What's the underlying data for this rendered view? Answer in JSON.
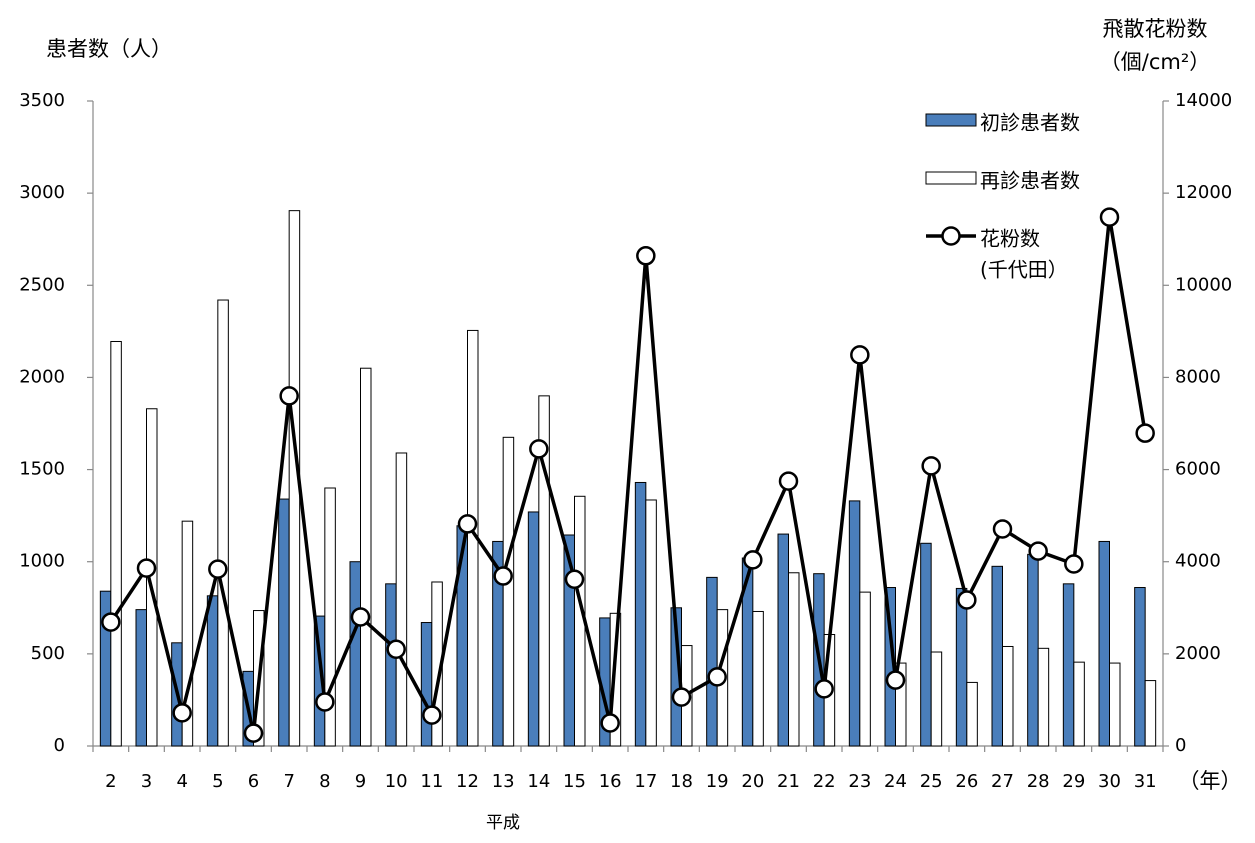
{
  "chart_data": {
    "type": "bar_line",
    "y_title": "患者数（人）",
    "y2_title": "飛散花粉数",
    "y2_unit": "（個/cm²）",
    "x_title": "平成",
    "x_unit": "（年）",
    "categories": [
      "2",
      "3",
      "4",
      "5",
      "6",
      "7",
      "8",
      "9",
      "10",
      "11",
      "12",
      "13",
      "14",
      "15",
      "16",
      "17",
      "18",
      "19",
      "20",
      "21",
      "22",
      "23",
      "24",
      "25",
      "26",
      "27",
      "28",
      "29",
      "30",
      "31"
    ],
    "series": [
      {
        "name": "初診患者数",
        "color": "#4a7ebb",
        "type": "bar",
        "values": [
          840,
          740,
          560,
          815,
          405,
          1340,
          705,
          1000,
          880,
          670,
          1195,
          1110,
          1270,
          1145,
          695,
          1430,
          750,
          915,
          1020,
          1150,
          935,
          1330,
          860,
          1100,
          855,
          975,
          1040,
          880,
          1110,
          860
        ]
      },
      {
        "name": "再診患者数",
        "color": "#ffffff",
        "type": "bar",
        "values": [
          2195,
          1830,
          1220,
          2420,
          735,
          2905,
          1400,
          2050,
          1590,
          890,
          2255,
          1675,
          1900,
          1355,
          720,
          1335,
          545,
          740,
          730,
          940,
          605,
          835,
          450,
          510,
          345,
          540,
          530,
          455,
          450,
          355
        ]
      },
      {
        "name": "花粉数",
        "name_sub": "(千代田）",
        "color": "#000000",
        "type": "line",
        "axis": "y2",
        "values": [
          2690,
          3860,
          720,
          3840,
          280,
          7600,
          955,
          2800,
          2100,
          670,
          4820,
          3690,
          6450,
          3620,
          500,
          10640,
          1060,
          1500,
          4040,
          5750,
          1240,
          8490,
          1430,
          6080,
          3170,
          4710,
          4230,
          3950,
          11480,
          6790
        ]
      }
    ],
    "ylim": [
      0,
      3500
    ],
    "yticks": [
      0,
      500,
      1000,
      1500,
      2000,
      2500,
      3000,
      3500
    ],
    "y2lim": [
      0,
      14000
    ],
    "y2ticks": [
      0,
      2000,
      4000,
      6000,
      8000,
      10000,
      12000,
      14000
    ],
    "grid": false,
    "legend": "upper right"
  }
}
